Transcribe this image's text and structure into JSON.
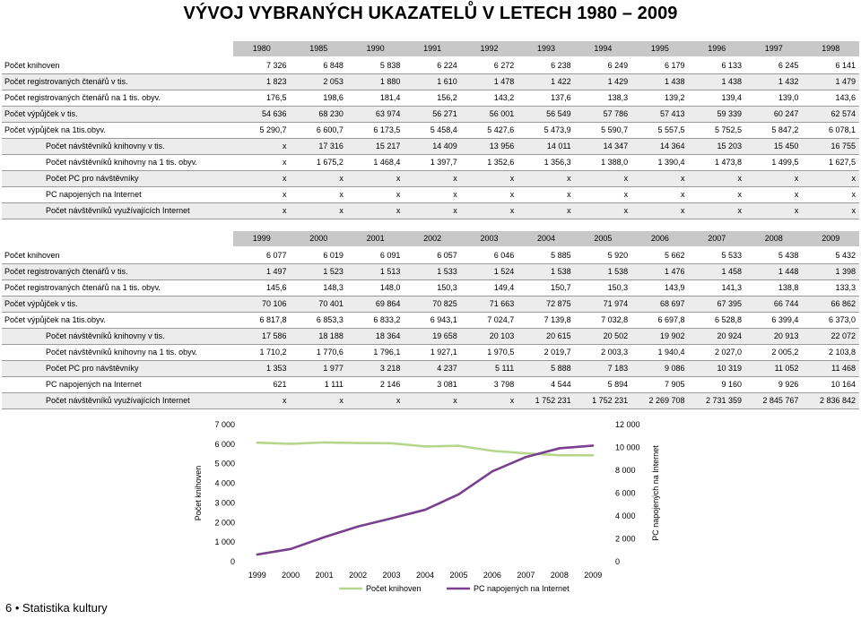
{
  "title": "VÝVOJ VYBRANÝCH UKAZATELŮ V LETECH 1980 – 2009",
  "table1": {
    "years": [
      "1980",
      "1985",
      "1990",
      "1991",
      "1992",
      "1993",
      "1994",
      "1995",
      "1996",
      "1997",
      "1998"
    ],
    "rows": [
      {
        "label": "Počet knihoven",
        "indent": false,
        "values": [
          "7 326",
          "6 848",
          "5 838",
          "6 224",
          "6 272",
          "6 238",
          "6 249",
          "6 179",
          "6 133",
          "6 245",
          "6 141"
        ]
      },
      {
        "label": "Počet registrovaných čtenářů v tis.",
        "indent": false,
        "values": [
          "1 823",
          "2 053",
          "1 880",
          "1 610",
          "1 478",
          "1 422",
          "1 429",
          "1 438",
          "1 438",
          "1 432",
          "1 479"
        ]
      },
      {
        "label": "Počet registrovaných čtenářů na 1 tis. obyv.",
        "indent": false,
        "values": [
          "176,5",
          "198,6",
          "181,4",
          "156,2",
          "143,2",
          "137,6",
          "138,3",
          "139,2",
          "139,4",
          "139,0",
          "143,6"
        ]
      },
      {
        "label": "Počet výpůjček v tis.",
        "indent": false,
        "values": [
          "54 636",
          "68 230",
          "63 974",
          "56 271",
          "56 001",
          "56 549",
          "57 786",
          "57 413",
          "59 339",
          "60 247",
          "62 574"
        ]
      },
      {
        "label": "Počet výpůjček na 1tis.obyv.",
        "indent": false,
        "values": [
          "5 290,7",
          "6 600,7",
          "6 173,5",
          "5 458,4",
          "5 427,6",
          "5 473,9",
          "5 590,7",
          "5 557,5",
          "5 752,5",
          "5 847,2",
          "6 078,1"
        ]
      },
      {
        "label": "Počet návštěvníků knihovny v tis.",
        "indent": true,
        "values": [
          "x",
          "17 316",
          "15 217",
          "14 409",
          "13 956",
          "14 011",
          "14 347",
          "14 364",
          "15 203",
          "15 450",
          "16 755"
        ]
      },
      {
        "label": "Počet návštěvníků knihovny na 1 tis. obyv.",
        "indent": true,
        "values": [
          "x",
          "1 675,2",
          "1 468,4",
          "1 397,7",
          "1 352,6",
          "1 356,3",
          "1 388,0",
          "1 390,4",
          "1 473,8",
          "1 499,5",
          "1 627,5"
        ]
      },
      {
        "label": "Počet PC pro návštěvníky",
        "indent": true,
        "values": [
          "x",
          "x",
          "x",
          "x",
          "x",
          "x",
          "x",
          "x",
          "x",
          "x",
          "x"
        ]
      },
      {
        "label": "PC napojených na Internet",
        "indent": true,
        "values": [
          "x",
          "x",
          "x",
          "x",
          "x",
          "x",
          "x",
          "x",
          "x",
          "x",
          "x"
        ]
      },
      {
        "label": "Počet návštěvníků využívajících Internet",
        "indent": true,
        "values": [
          "x",
          "x",
          "x",
          "x",
          "x",
          "x",
          "x",
          "x",
          "x",
          "x",
          "x"
        ]
      }
    ]
  },
  "table2": {
    "years": [
      "1999",
      "2000",
      "2001",
      "2002",
      "2003",
      "2004",
      "2005",
      "2006",
      "2007",
      "2008",
      "2009"
    ],
    "rows": [
      {
        "label": "Počet knihoven",
        "indent": false,
        "values": [
          "6 077",
          "6 019",
          "6 091",
          "6 057",
          "6 046",
          "5 885",
          "5 920",
          "5 662",
          "5 533",
          "5 438",
          "5 432"
        ]
      },
      {
        "label": "Počet registrovaných čtenářů v tis.",
        "indent": false,
        "values": [
          "1 497",
          "1 523",
          "1 513",
          "1 533",
          "1 524",
          "1 538",
          "1 538",
          "1 476",
          "1 458",
          "1 448",
          "1 398"
        ]
      },
      {
        "label": "Počet registrovaných čtenářů na 1 tis. obyv.",
        "indent": false,
        "values": [
          "145,6",
          "148,3",
          "148,0",
          "150,3",
          "149,4",
          "150,7",
          "150,3",
          "143,9",
          "141,3",
          "138,8",
          "133,3"
        ]
      },
      {
        "label": "Počet výpůjček v tis.",
        "indent": false,
        "values": [
          "70 106",
          "70 401",
          "69 864",
          "70 825",
          "71 663",
          "72 875",
          "71 974",
          "68 697",
          "67 395",
          "66 744",
          "66 862"
        ]
      },
      {
        "label": "Počet výpůjček na 1tis.obyv.",
        "indent": false,
        "values": [
          "6 817,8",
          "6 853,3",
          "6 833,2",
          "6 943,1",
          "7 024,7",
          "7 139,8",
          "7 032,8",
          "6 697,8",
          "6 528,8",
          "6 399,4",
          "6 373,0"
        ]
      },
      {
        "label": "Počet návštěvníků knihovny v tis.",
        "indent": true,
        "values": [
          "17 586",
          "18 188",
          "18 364",
          "19 658",
          "20 103",
          "20 615",
          "20 502",
          "19 902",
          "20 924",
          "20 913",
          "22 072"
        ]
      },
      {
        "label": "Počet návštěvníků knihovny na 1 tis. obyv.",
        "indent": true,
        "values": [
          "1 710,2",
          "1 770,6",
          "1 796,1",
          "1 927,1",
          "1 970,5",
          "2 019,7",
          "2 003,3",
          "1 940,4",
          "2 027,0",
          "2 005,2",
          "2 103,8"
        ]
      },
      {
        "label": "Počet PC pro návštěvníky",
        "indent": true,
        "values": [
          "1 353",
          "1 977",
          "3 218",
          "4 237",
          "5 111",
          "5 888",
          "7 183",
          "9 086",
          "10 319",
          "11 052",
          "11 468"
        ]
      },
      {
        "label": "PC napojených na Internet",
        "indent": true,
        "values": [
          "621",
          "1 111",
          "2 146",
          "3 081",
          "3 798",
          "4 544",
          "5 894",
          "7 905",
          "9 160",
          "9 926",
          "10 164"
        ]
      },
      {
        "label": "Počet návštěvníků využívajících Internet",
        "indent": true,
        "values": [
          "x",
          "x",
          "x",
          "x",
          "x",
          "1 752 231",
          "1 752 231",
          "2 269 708",
          "2 731 359",
          "2 845 767",
          "2 836 842"
        ]
      }
    ]
  },
  "chart_data": {
    "type": "line",
    "categories": [
      "1999",
      "2000",
      "2001",
      "2002",
      "2003",
      "2004",
      "2005",
      "2006",
      "2007",
      "2008",
      "2009"
    ],
    "series": [
      {
        "name": "Počet knihoven",
        "axis": "left",
        "color": "#b5d68b",
        "values": [
          6077,
          6019,
          6091,
          6057,
          6046,
          5885,
          5920,
          5662,
          5533,
          5438,
          5432
        ]
      },
      {
        "name": "PC napojených na Internet",
        "axis": "right",
        "color": "#7a3f8f",
        "values": [
          621,
          1111,
          2146,
          3081,
          3798,
          4544,
          5894,
          7905,
          9160,
          9926,
          10164
        ]
      }
    ],
    "ylabel": "Počet knihoven",
    "y2label": "PC napojených na Internet",
    "ylim": [
      0,
      7000
    ],
    "y2lim": [
      0,
      12000
    ],
    "yticks": [
      "0",
      "1 000",
      "2 000",
      "3 000",
      "4 000",
      "5 000",
      "6 000",
      "7 000"
    ],
    "y2ticks": [
      "0",
      "2 000",
      "4 000",
      "6 000",
      "8 000",
      "10 000",
      "12 000"
    ],
    "grid": false,
    "legend": "bottom"
  },
  "footer": "6 • Statistika kultury"
}
